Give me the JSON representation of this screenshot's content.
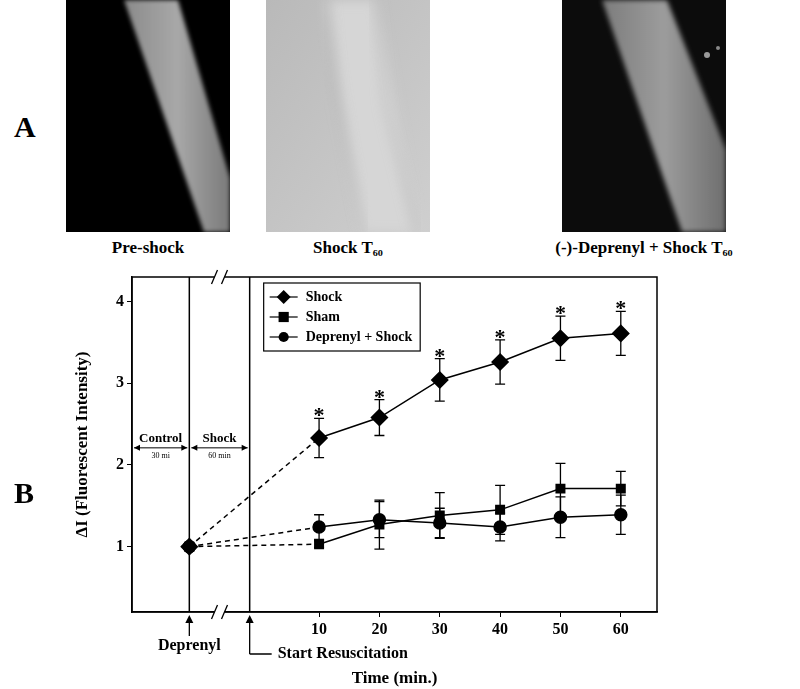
{
  "figure_labels": [
    "A",
    "B"
  ],
  "images": [
    {
      "caption": "Pre-shock"
    },
    {
      "caption": "Shock T₆₀"
    },
    {
      "caption": "(-)-Deprenyl + Shock T₆₀"
    }
  ],
  "chart_data": {
    "type": "line",
    "x_label": "Time (min.)",
    "y_label": "ΔI (Fluorescent Intensity)",
    "x": [
      -11.5,
      10,
      20,
      30,
      40,
      50,
      60
    ],
    "xlim": [
      -21,
      66
    ],
    "xticks": [
      10,
      20,
      30,
      40,
      50,
      60
    ],
    "ylim": [
      0.2,
      4.3
    ],
    "yticks": [
      1,
      2,
      3,
      4
    ],
    "grid": false,
    "legend": "top-left",
    "series": [
      {
        "name": "Shock",
        "color": "#000000",
        "marker": "diamond",
        "values": [
          1,
          2.33,
          2.58,
          3.04,
          3.26,
          3.55,
          3.61
        ],
        "errors": [
          null,
          0.24,
          0.22,
          0.26,
          0.27,
          0.27,
          0.27
        ],
        "significance": [
          null,
          "*",
          "*",
          "*",
          "*",
          "*",
          "*"
        ]
      },
      {
        "name": "Sham",
        "color": "#000000",
        "marker": "square",
        "values": [
          1,
          1.03,
          1.27,
          1.38,
          1.45,
          1.71,
          1.71
        ],
        "errors": [
          null,
          0.04,
          0.3,
          0.28,
          0.3,
          0.31,
          0.21
        ]
      },
      {
        "name": "Deprenyl + Shock",
        "color": "#000000",
        "marker": "circle",
        "values": [
          1,
          1.24,
          1.33,
          1.29,
          1.24,
          1.36,
          1.39
        ],
        "errors": [
          null,
          0.15,
          0.22,
          0.18,
          0.17,
          0.25,
          0.24
        ]
      }
    ],
    "annotations": [
      {
        "x": -11.5,
        "text": "Deprenyl"
      },
      {
        "x": -1.5,
        "text": "Start Resuscitation"
      }
    ],
    "periods": [
      {
        "label": "Control",
        "duration": "30 mi"
      },
      {
        "label": "Shock",
        "duration": "60 min"
      }
    ]
  }
}
